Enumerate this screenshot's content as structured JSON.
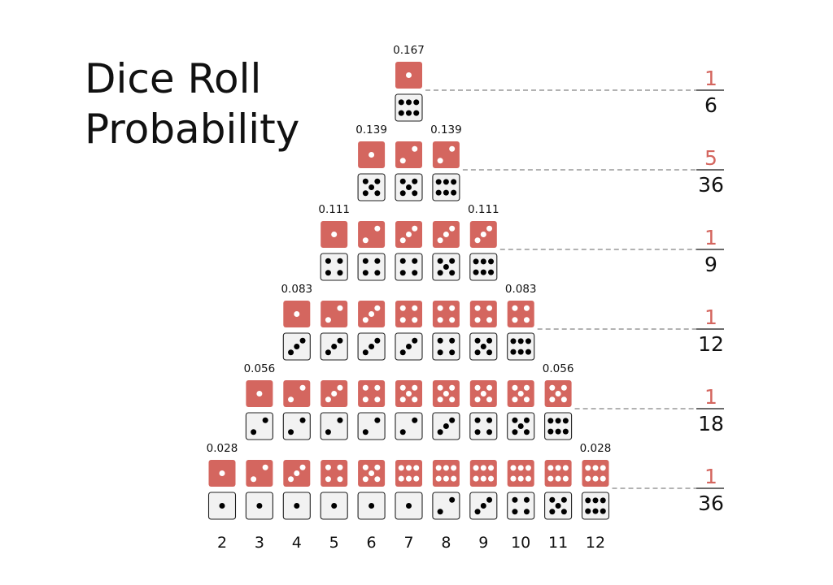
{
  "title": {
    "line1": "Dice Roll",
    "line2": "Probability"
  },
  "colors": {
    "red_die": "#d4665f",
    "red_pip": "#ffffff",
    "white_die": "#f2f2f2",
    "white_pip": "#000000",
    "numerator": "#d4665f",
    "text": "#111111",
    "dash": "#666666"
  },
  "icons": [
    "red-die-icon",
    "white-die-icon"
  ],
  "sums": [
    2,
    3,
    4,
    5,
    6,
    7,
    8,
    9,
    10,
    11,
    12
  ],
  "levels": [
    {
      "ways": 6,
      "probability": "0.167",
      "fraction": {
        "numerator": "1",
        "denominator": "6"
      },
      "sums_with_this_probability": [
        7
      ],
      "pairs": [
        [
          1,
          6
        ]
      ]
    },
    {
      "ways": 5,
      "probability": "0.139",
      "fraction": {
        "numerator": "5",
        "denominator": "36"
      },
      "sums_with_this_probability": [
        6,
        8
      ],
      "pairs": [
        [
          1,
          5
        ],
        [
          2,
          5
        ],
        [
          2,
          6
        ]
      ]
    },
    {
      "ways": 4,
      "probability": "0.111",
      "fraction": {
        "numerator": "1",
        "denominator": "9"
      },
      "sums_with_this_probability": [
        5,
        9
      ],
      "pairs": [
        [
          1,
          4
        ],
        [
          2,
          4
        ],
        [
          3,
          4
        ],
        [
          3,
          5
        ],
        [
          3,
          6
        ]
      ]
    },
    {
      "ways": 3,
      "probability": "0.083",
      "fraction": {
        "numerator": "1",
        "denominator": "12"
      },
      "sums_with_this_probability": [
        4,
        10
      ],
      "pairs": [
        [
          1,
          3
        ],
        [
          2,
          3
        ],
        [
          3,
          3
        ],
        [
          4,
          3
        ],
        [
          4,
          4
        ],
        [
          4,
          5
        ],
        [
          4,
          6
        ]
      ]
    },
    {
      "ways": 2,
      "probability": "0.056",
      "fraction": {
        "numerator": "1",
        "denominator": "18"
      },
      "sums_with_this_probability": [
        3,
        11
      ],
      "pairs": [
        [
          1,
          2
        ],
        [
          2,
          2
        ],
        [
          3,
          2
        ],
        [
          4,
          2
        ],
        [
          5,
          2
        ],
        [
          5,
          3
        ],
        [
          5,
          4
        ],
        [
          5,
          5
        ],
        [
          5,
          6
        ]
      ]
    },
    {
      "ways": 1,
      "probability": "0.028",
      "fraction": {
        "numerator": "1",
        "denominator": "36"
      },
      "sums_with_this_probability": [
        2,
        12
      ],
      "pairs": [
        [
          1,
          1
        ],
        [
          2,
          1
        ],
        [
          3,
          1
        ],
        [
          4,
          1
        ],
        [
          5,
          1
        ],
        [
          6,
          1
        ],
        [
          6,
          2
        ],
        [
          6,
          3
        ],
        [
          6,
          4
        ],
        [
          6,
          5
        ],
        [
          6,
          6
        ]
      ]
    }
  ]
}
